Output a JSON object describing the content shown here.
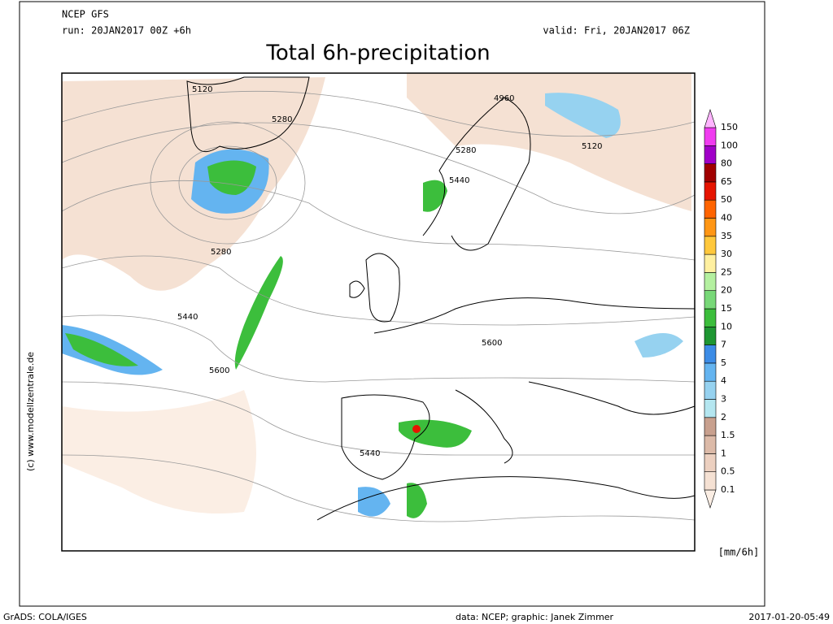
{
  "header": {
    "model": "NCEP GFS",
    "run": "run: 20JAN2017 00Z +6h",
    "valid": "valid: Fri, 20JAN2017 06Z"
  },
  "title": "Total 6h-precipitation",
  "contour_labels": [
    "5120",
    "5280",
    "4960",
    "5280",
    "5120",
    "5440",
    "5280",
    "5440",
    "5600",
    "5600",
    "5440"
  ],
  "legend": {
    "levels": [
      0.1,
      0.5,
      1,
      1.5,
      2,
      3,
      4,
      5,
      7,
      10,
      15,
      20,
      25,
      30,
      35,
      40,
      50,
      65,
      80,
      100,
      150
    ],
    "colors": [
      "#fbeee4",
      "#f5e1d3",
      "#ecd0c0",
      "#dcbaa8",
      "#c8a08e",
      "#b4e6f0",
      "#96d2f0",
      "#64b4f0",
      "#3c8ce6",
      "#1e9632",
      "#3cbe3c",
      "#78d878",
      "#b4f0a0",
      "#fff0a0",
      "#ffc83c",
      "#ff9614",
      "#ff6400",
      "#e61400",
      "#a00000",
      "#a000c8",
      "#f03cf0",
      "#ffb4ff"
    ],
    "unit": "[mm/6h]"
  },
  "copyright": "(c) www.modellzentrale.de",
  "footer": {
    "left": "GrADS: COLA/IGES",
    "center": "data: NCEP; graphic: Janek Zimmer",
    "right": "2017-01-20-05:49"
  }
}
